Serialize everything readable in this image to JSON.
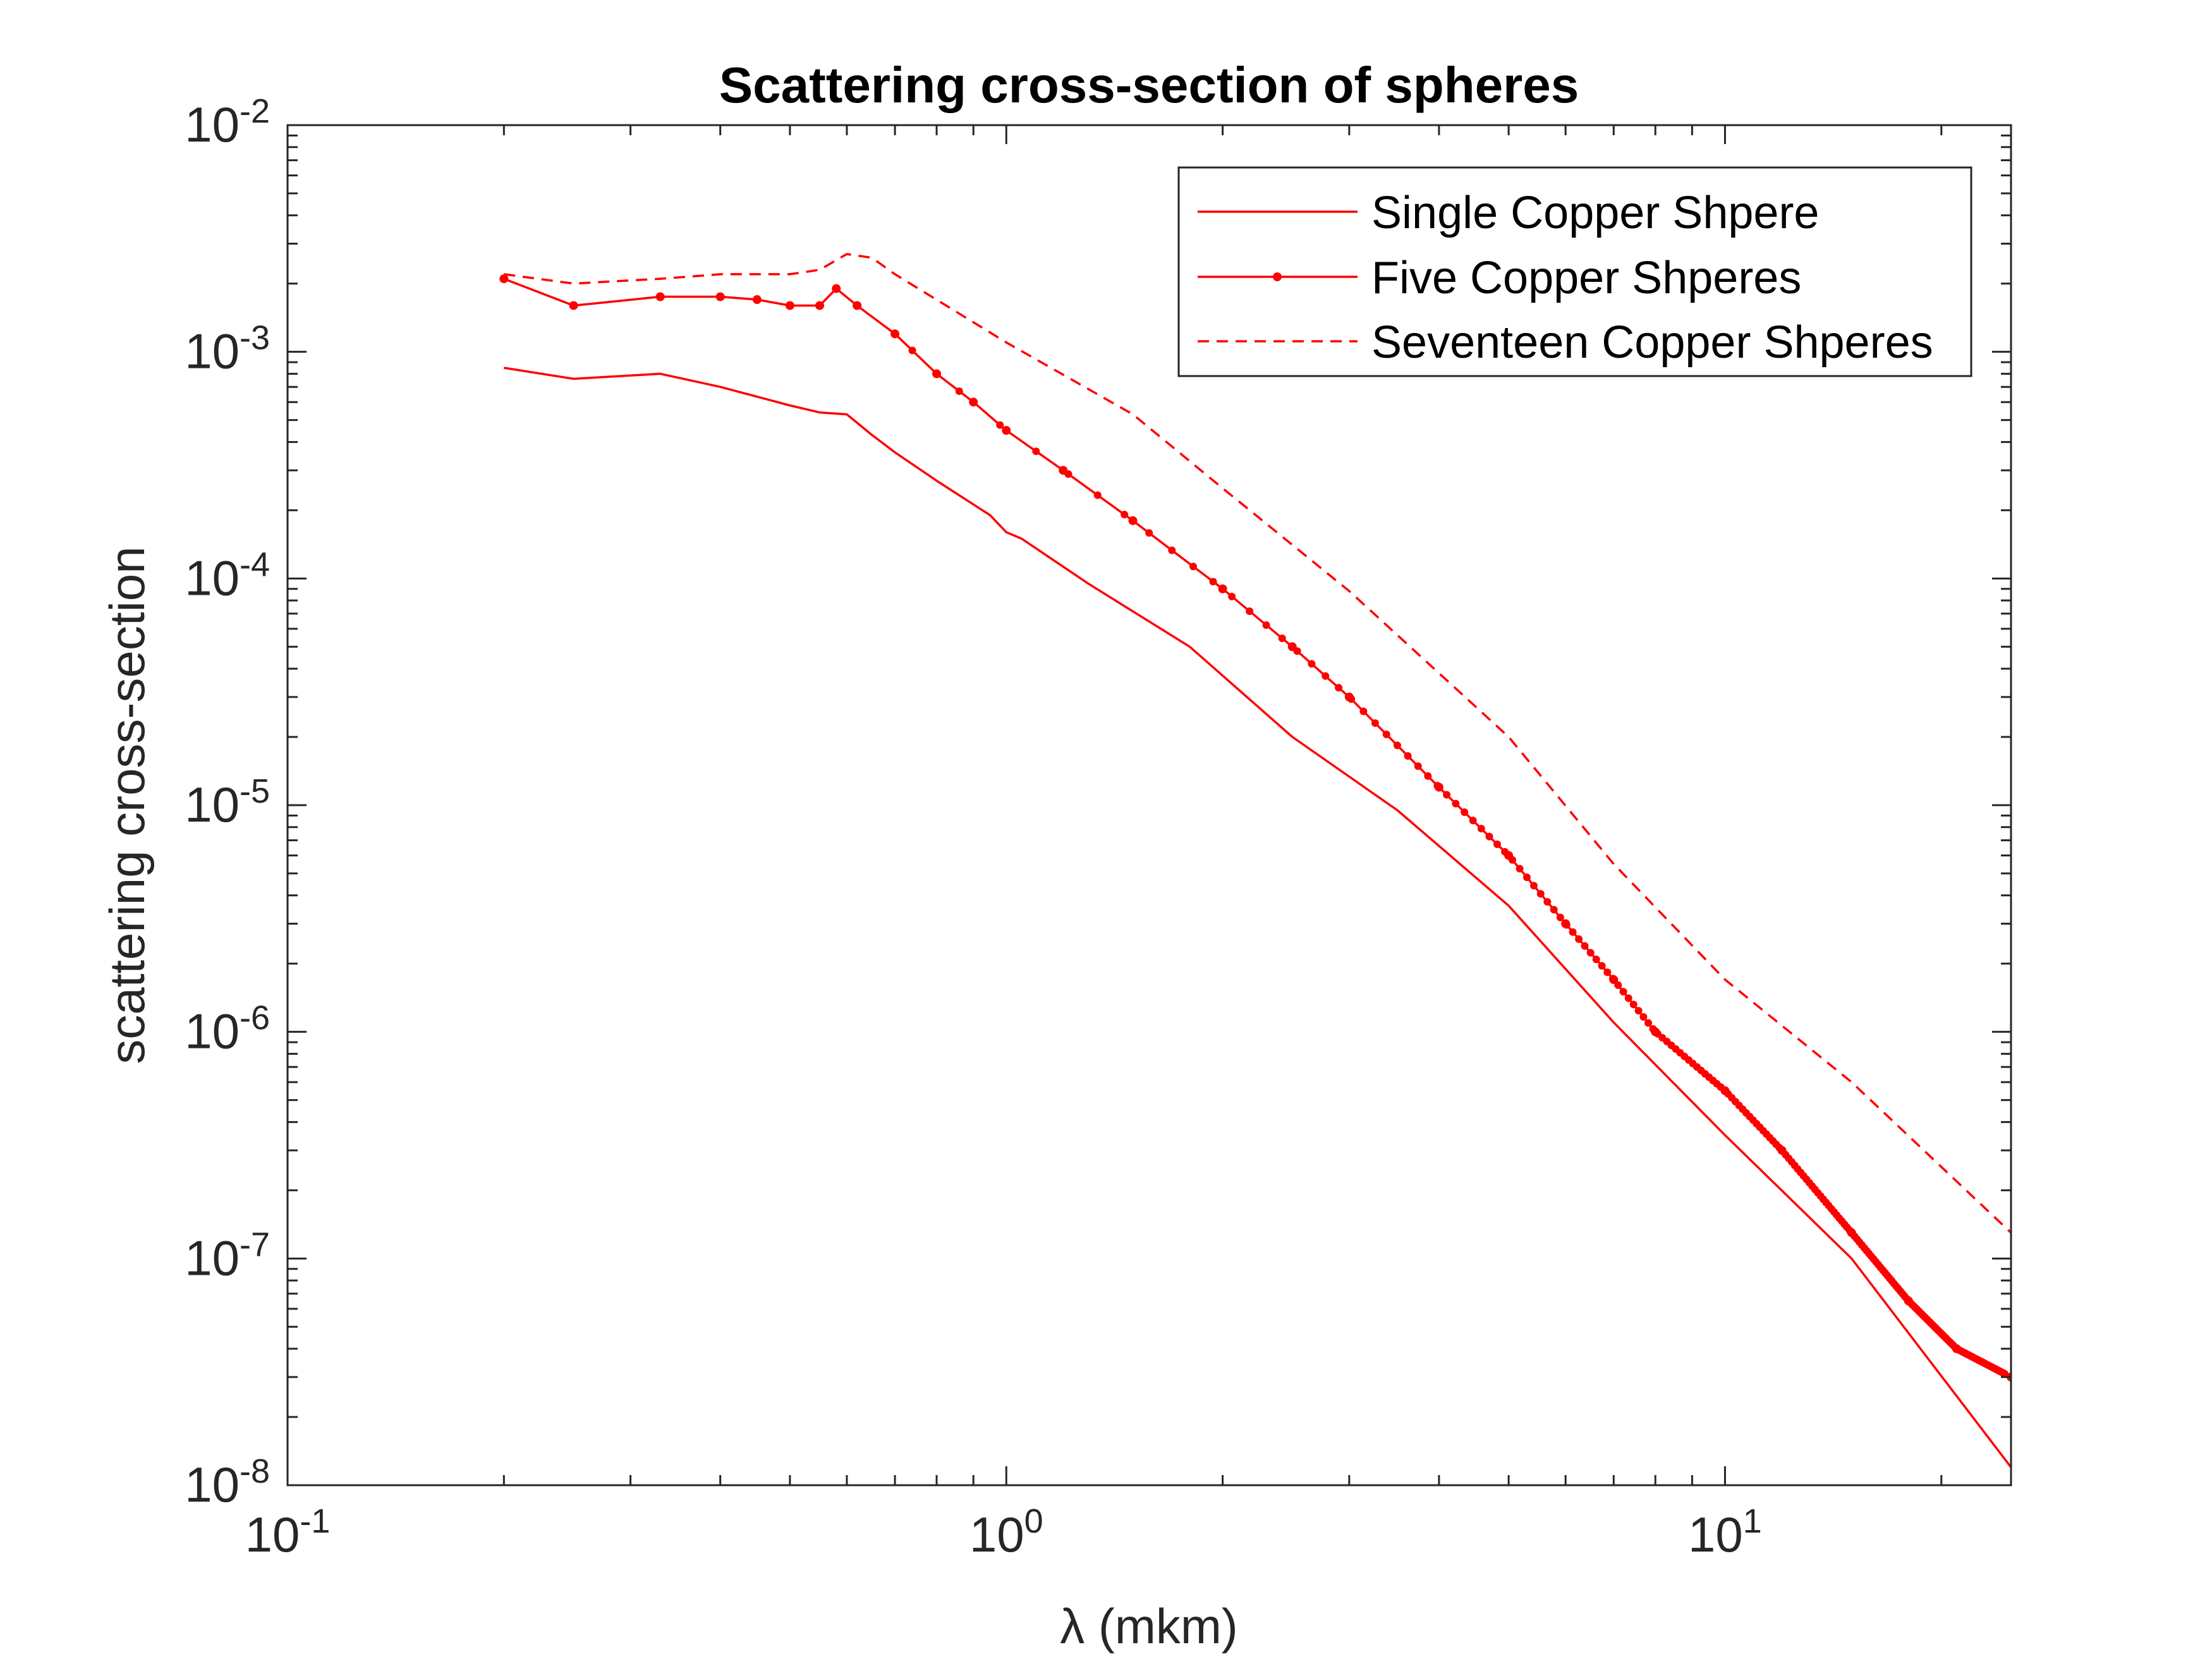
{
  "chart_data": {
    "type": "line",
    "title": "Scattering cross-section of spheres",
    "xlabel": "λ (mkm)",
    "ylabel": "scattering cross-section",
    "xscale": "log",
    "yscale": "log",
    "xlim": [
      0.1,
      25
    ],
    "ylim": [
      1e-08,
      0.01
    ],
    "grid": false,
    "legend_position": "top-right",
    "x_ticks": [
      {
        "value": 0.1,
        "base": "10",
        "exp": "-1"
      },
      {
        "value": 1,
        "base": "10",
        "exp": "0"
      },
      {
        "value": 10,
        "base": "10",
        "exp": "1"
      }
    ],
    "y_ticks": [
      {
        "value": 1e-08,
        "base": "10",
        "exp": "-8"
      },
      {
        "value": 1e-07,
        "base": "10",
        "exp": "-7"
      },
      {
        "value": 1e-06,
        "base": "10",
        "exp": "-6"
      },
      {
        "value": 1e-05,
        "base": "10",
        "exp": "-5"
      },
      {
        "value": 0.0001,
        "base": "10",
        "exp": "-4"
      },
      {
        "value": 0.001,
        "base": "10",
        "exp": "-3"
      },
      {
        "value": 0.01,
        "base": "10",
        "exp": "-2"
      }
    ],
    "series": [
      {
        "name": "Single Copper Shpere",
        "color": "#ff0000",
        "style": "solid",
        "marker": "none",
        "x": [
          0.2,
          0.25,
          0.33,
          0.4,
          0.5,
          0.55,
          0.6,
          0.65,
          0.7,
          0.8,
          0.95,
          1.0,
          1.05,
          1.3,
          1.8,
          2.5,
          3.5,
          5.0,
          7.0,
          10.0,
          15.0,
          25.0
        ],
        "y": [
          0.00085,
          0.00076,
          0.0008,
          0.0007,
          0.00058,
          0.00054,
          0.00053,
          0.00043,
          0.00036,
          0.00027,
          0.00019,
          0.00016,
          0.00015,
          9.5e-05,
          5e-05,
          2e-05,
          9.5e-06,
          3.6e-06,
          1.1e-06,
          3.5e-07,
          1e-07,
          1.2e-08
        ]
      },
      {
        "name": "Five Copper Shperes",
        "color": "#ff0000",
        "style": "solid",
        "marker": "dot",
        "x": [
          0.2,
          0.25,
          0.33,
          0.4,
          0.45,
          0.5,
          0.55,
          0.58,
          0.62,
          0.7,
          0.8,
          0.9,
          1.0,
          1.2,
          1.5,
          2.0,
          2.5,
          3.0,
          4.0,
          5.0,
          6.0,
          7.0,
          8.0,
          10.0,
          12.0,
          15.0,
          18.0,
          21.0,
          25.0
        ],
        "y": [
          0.0021,
          0.0016,
          0.00175,
          0.00175,
          0.0017,
          0.0016,
          0.0016,
          0.0019,
          0.0016,
          0.0012,
          0.0008,
          0.0006,
          0.00045,
          0.0003,
          0.00018,
          9e-05,
          5e-05,
          3e-05,
          1.2e-05,
          6e-06,
          3e-06,
          1.7e-06,
          1e-06,
          5.5e-07,
          3e-07,
          1.3e-07,
          6.5e-08,
          4e-08,
          3e-08
        ]
      },
      {
        "name": "Seventeen Copper Shperes",
        "color": "#ff0000",
        "style": "dashed",
        "marker": "none",
        "x": [
          0.2,
          0.25,
          0.33,
          0.4,
          0.45,
          0.5,
          0.55,
          0.6,
          0.65,
          0.7,
          1.0,
          1.5,
          2.0,
          3.0,
          5.0,
          7.0,
          10.0,
          15.0,
          25.0
        ],
        "y": [
          0.0022,
          0.002,
          0.0021,
          0.0022,
          0.0022,
          0.0022,
          0.0023,
          0.0027,
          0.0026,
          0.0022,
          0.0011,
          0.00053,
          0.00025,
          8.8e-05,
          2e-05,
          5.5e-06,
          1.7e-06,
          6e-07,
          1.3e-07
        ]
      }
    ]
  }
}
